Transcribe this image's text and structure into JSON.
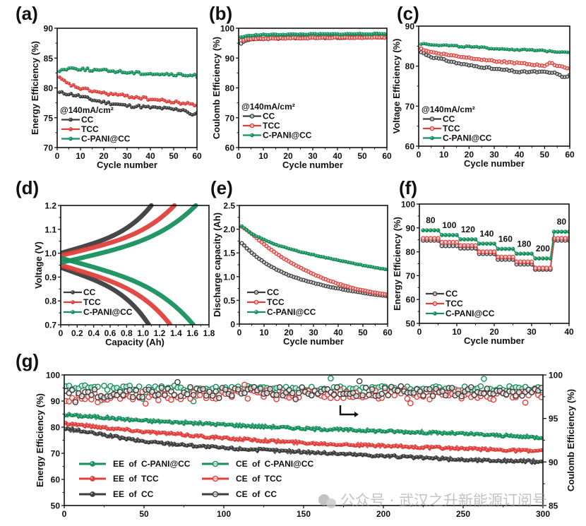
{
  "figure": {
    "watermark": "公众号 · 武汉之升新能源订阅号",
    "colors": {
      "CC": "#3d3d3d",
      "TCC": "#e0403c",
      "C-PANI@CC": "#16905c"
    }
  },
  "chart_data": [
    {
      "id": "a",
      "panel_label": "(a)",
      "type": "scatter",
      "title": "",
      "xlabel": "Cycle number",
      "ylabel": "Energy Efficiency (%)",
      "xlim": [
        0,
        60
      ],
      "ylim": [
        70,
        90
      ],
      "xticks": [
        0,
        10,
        20,
        30,
        40,
        50,
        60
      ],
      "yticks": [
        70,
        75,
        80,
        85,
        90
      ],
      "legend_title": "@140mA/cm²",
      "legend": "bottom-left",
      "series": [
        {
          "name": "CC",
          "marker": "filled",
          "x": [
            1,
            5,
            10,
            15,
            20,
            25,
            30,
            35,
            40,
            45,
            50,
            55,
            58,
            60
          ],
          "y": [
            79.2,
            79.0,
            78.6,
            78.0,
            77.6,
            77.3,
            77.0,
            76.9,
            76.7,
            76.6,
            76.4,
            76.3,
            75.3,
            76.0
          ]
        },
        {
          "name": "TCC",
          "marker": "filled",
          "x": [
            1,
            5,
            10,
            15,
            20,
            25,
            30,
            35,
            40,
            45,
            50,
            55,
            60
          ],
          "y": [
            81.6,
            80.6,
            79.9,
            79.5,
            79.1,
            78.9,
            78.6,
            78.4,
            78.1,
            77.9,
            77.6,
            77.4,
            77.1
          ]
        },
        {
          "name": "C-PANI@CC",
          "marker": "filled",
          "x": [
            1,
            5,
            10,
            15,
            20,
            25,
            30,
            35,
            40,
            45,
            50,
            55,
            60
          ],
          "y": [
            82.9,
            83.3,
            83.2,
            83.0,
            82.9,
            82.8,
            82.6,
            82.5,
            82.4,
            82.3,
            82.2,
            82.1,
            82.0
          ]
        }
      ]
    },
    {
      "id": "b",
      "panel_label": "(b)",
      "type": "scatter",
      "title": "",
      "xlabel": "Cycle number",
      "ylabel": "Coulomb Efficiency (%)",
      "xlim": [
        0,
        60
      ],
      "ylim": [
        60,
        100
      ],
      "xticks": [
        0,
        10,
        20,
        30,
        40,
        50,
        60
      ],
      "yticks": [
        60,
        70,
        80,
        90,
        100
      ],
      "legend_title": "@140mA/cm²",
      "legend": "bottom-left",
      "series": [
        {
          "name": "CC",
          "marker": "open",
          "x": [
            1,
            3,
            5,
            10,
            20,
            30,
            40,
            50,
            60
          ],
          "y": [
            95.0,
            95.8,
            96.3,
            96.5,
            96.7,
            96.8,
            96.9,
            97.0,
            97.0
          ]
        },
        {
          "name": "TCC",
          "marker": "open",
          "x": [
            1,
            3,
            5,
            10,
            20,
            30,
            40,
            50,
            60
          ],
          "y": [
            96.0,
            96.3,
            96.5,
            96.6,
            96.7,
            96.8,
            96.9,
            96.9,
            97.0
          ]
        },
        {
          "name": "C-PANI@CC",
          "marker": "filled",
          "x": [
            1,
            3,
            5,
            10,
            20,
            30,
            40,
            50,
            60
          ],
          "y": [
            97.0,
            97.3,
            97.6,
            97.8,
            97.9,
            98.0,
            98.0,
            98.1,
            98.1
          ]
        }
      ]
    },
    {
      "id": "c",
      "panel_label": "(c)",
      "type": "scatter",
      "title": "",
      "xlabel": "Cycle number",
      "ylabel": "Voltage Efficiency (%)",
      "xlim": [
        0,
        60
      ],
      "ylim": [
        60,
        90
      ],
      "xticks": [
        0,
        10,
        20,
        30,
        40,
        50,
        60
      ],
      "yticks": [
        60,
        70,
        80,
        90
      ],
      "legend_title": "@140mA/cm²",
      "legend": "bottom-left",
      "series": [
        {
          "name": "CC",
          "marker": "open",
          "x": [
            1,
            5,
            10,
            15,
            20,
            25,
            30,
            35,
            40,
            45,
            50,
            55,
            57,
            60
          ],
          "y": [
            83.5,
            82.3,
            81.6,
            80.8,
            80.2,
            79.8,
            79.3,
            79.0,
            78.5,
            78.6,
            78.5,
            78.2,
            77.2,
            77.7
          ]
        },
        {
          "name": "TCC",
          "marker": "open",
          "x": [
            1,
            5,
            10,
            15,
            20,
            25,
            30,
            35,
            40,
            45,
            50,
            52,
            55,
            60
          ],
          "y": [
            84.3,
            83.5,
            83.0,
            82.5,
            82.1,
            81.7,
            81.3,
            81.0,
            80.7,
            80.4,
            80.1,
            80.8,
            80.2,
            79.4
          ]
        },
        {
          "name": "C-PANI@CC",
          "marker": "filled",
          "x": [
            1,
            10,
            20,
            30,
            40,
            50,
            60
          ],
          "y": [
            85.6,
            85.2,
            84.8,
            84.4,
            84.1,
            83.8,
            83.5
          ]
        }
      ]
    },
    {
      "id": "d",
      "panel_label": "(d)",
      "type": "line",
      "title": "",
      "xlabel": "Capacity (Ah)",
      "ylabel": "Voltage (V)",
      "xlim": [
        0,
        1.8
      ],
      "ylim": [
        0.7,
        1.2
      ],
      "xticks": [
        0,
        0.2,
        0.4,
        0.6,
        0.8,
        1.0,
        1.2,
        1.4,
        1.6,
        1.8
      ],
      "yticks": [
        0.7,
        0.8,
        0.9,
        1.0,
        1.1,
        1.2
      ],
      "legend": "bottom-left",
      "series": [
        {
          "name": "CC",
          "charge_end_capacity": 1.1,
          "discharge_end_capacity": 1.07,
          "charge_start_voltage": 1.0,
          "discharge_start_voltage": 0.94
        },
        {
          "name": "TCC",
          "charge_end_capacity": 1.38,
          "discharge_end_capacity": 1.33,
          "charge_start_voltage": 0.99,
          "discharge_start_voltage": 0.95
        },
        {
          "name": "C-PANI@CC",
          "charge_end_capacity": 1.64,
          "discharge_end_capacity": 1.61,
          "charge_start_voltage": 0.96,
          "discharge_start_voltage": 0.98
        }
      ]
    },
    {
      "id": "e",
      "panel_label": "(e)",
      "type": "scatter",
      "title": "",
      "xlabel": "Cycle number",
      "ylabel": "Discharge capacity (Ah)",
      "xlim": [
        0,
        60
      ],
      "ylim": [
        0,
        2.5
      ],
      "xticks": [
        0,
        10,
        20,
        30,
        40,
        50,
        60
      ],
      "yticks": [
        0,
        0.5,
        1.0,
        1.5,
        2.0,
        2.5
      ],
      "legend": "bottom-left",
      "series": [
        {
          "name": "CC",
          "marker": "open",
          "x": [
            1,
            5,
            10,
            15,
            20,
            25,
            30,
            35,
            40,
            45,
            50,
            55,
            60
          ],
          "y": [
            1.7,
            1.5,
            1.3,
            1.15,
            1.03,
            0.94,
            0.87,
            0.8,
            0.75,
            0.7,
            0.66,
            0.62,
            0.59
          ]
        },
        {
          "name": "TCC",
          "marker": "open",
          "x": [
            1,
            5,
            10,
            15,
            20,
            25,
            30,
            35,
            40,
            45,
            50,
            55,
            60
          ],
          "y": [
            2.05,
            1.9,
            1.68,
            1.48,
            1.32,
            1.18,
            1.05,
            0.94,
            0.85,
            0.77,
            0.71,
            0.66,
            0.62
          ]
        },
        {
          "name": "C-PANI@CC",
          "marker": "filled",
          "x": [
            1,
            5,
            10,
            15,
            20,
            25,
            30,
            35,
            40,
            45,
            50,
            55,
            60
          ],
          "y": [
            2.06,
            1.9,
            1.78,
            1.67,
            1.59,
            1.52,
            1.46,
            1.4,
            1.35,
            1.29,
            1.24,
            1.19,
            1.15
          ]
        }
      ]
    },
    {
      "id": "f",
      "panel_label": "(f)",
      "type": "scatter",
      "title": "",
      "xlabel": "Cycle number",
      "ylabel": "Energy Efficiency (%)",
      "xlim": [
        0,
        40
      ],
      "ylim": [
        50,
        100
      ],
      "xticks": [
        0,
        10,
        20,
        30,
        40
      ],
      "yticks": [
        50,
        60,
        70,
        80,
        90,
        100
      ],
      "legend": "bottom-left",
      "annotations": [
        "80",
        "100",
        "120",
        "140",
        "160",
        "180",
        "200",
        "80"
      ],
      "current_densities": [
        80,
        100,
        120,
        140,
        160,
        180,
        200,
        80
      ],
      "series": [
        {
          "name": "CC",
          "marker": "open",
          "step_values": [
            84.8,
            82.5,
            81.5,
            79.2,
            76.8,
            74.8,
            72.6,
            84.8
          ]
        },
        {
          "name": "TCC",
          "marker": "open",
          "step_values": [
            85.6,
            84.0,
            82.6,
            80.0,
            77.8,
            75.8,
            73.2,
            85.6
          ]
        },
        {
          "name": "C-PANI@CC",
          "marker": "filled",
          "step_values": [
            89.0,
            87.0,
            85.2,
            83.4,
            81.2,
            79.2,
            77.2,
            88.4
          ]
        }
      ]
    },
    {
      "id": "g",
      "panel_label": "(g)",
      "type": "scatter",
      "title": "",
      "xlabel": "",
      "ylabel": "Energy Efficiency (%)",
      "ylabel_right": "Coulomb Efficiency (%)",
      "xlim": [
        0,
        300
      ],
      "ylim": [
        50,
        100
      ],
      "ylim_right": [
        85,
        100
      ],
      "xticks": [
        0,
        50,
        100,
        150,
        200,
        250,
        300
      ],
      "yticks": [
        50,
        60,
        70,
        80,
        90,
        100
      ],
      "yticks_right": [
        85,
        90,
        95,
        100
      ],
      "legend": "bottom-left",
      "series": [
        {
          "name": "EE of C-PANI@CC",
          "axis": "left",
          "marker": "filled",
          "color_key": "C-PANI@CC",
          "x": [
            0,
            50,
            100,
            150,
            200,
            250,
            300
          ],
          "y": [
            84.8,
            82.5,
            81.0,
            79.5,
            78.5,
            77.5,
            76.0
          ]
        },
        {
          "name": "EE of TCC",
          "axis": "left",
          "marker": "filled",
          "color_key": "TCC",
          "x": [
            0,
            50,
            100,
            150,
            200,
            250,
            300
          ],
          "y": [
            81.5,
            78.3,
            75.8,
            74.0,
            72.8,
            71.8,
            70.8
          ]
        },
        {
          "name": "EE of CC",
          "axis": "left",
          "marker": "filled",
          "color_key": "CC",
          "x": [
            0,
            50,
            100,
            150,
            200,
            250,
            300
          ],
          "y": [
            79.5,
            74.5,
            72.0,
            70.5,
            69.0,
            67.5,
            66.8
          ]
        },
        {
          "name": "CE of C-PANI@CC",
          "axis": "right",
          "marker": "open",
          "color_key": "C-PANI@CC",
          "x": [
            0,
            50,
            100,
            150,
            200,
            250,
            300
          ],
          "y": [
            98.5,
            98.5,
            98.4,
            98.4,
            98.4,
            98.4,
            98.4
          ]
        },
        {
          "name": "CE of TCC",
          "axis": "right",
          "marker": "open",
          "color_key": "TCC",
          "x": [
            0,
            50,
            100,
            150,
            200,
            250,
            300
          ],
          "y": [
            97.2,
            97.6,
            97.7,
            97.8,
            97.7,
            97.7,
            97.7
          ]
        },
        {
          "name": "CE of CC",
          "axis": "right",
          "marker": "open",
          "color_key": "CC",
          "x": [
            0,
            50,
            100,
            150,
            200,
            250,
            300
          ],
          "y": [
            97.8,
            98.0,
            98.1,
            98.1,
            98.1,
            98.1,
            98.1
          ]
        }
      ],
      "annotation": "arrow pointing to right axis"
    }
  ]
}
